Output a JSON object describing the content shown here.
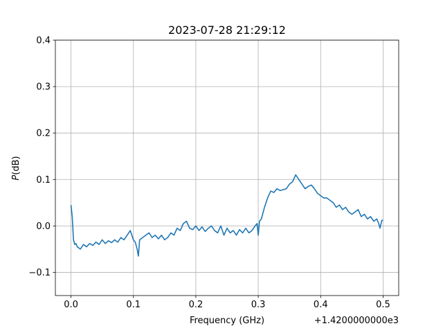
{
  "chart_data": {
    "type": "line",
    "title": "2023-07-28 21:29:12",
    "xlabel": "Frequency (GHz)",
    "ylabel_italic": "P",
    "ylabel_rest": "(dB)",
    "offset_text": "+1.4200000000e3",
    "xlim": [
      -0.025,
      0.525
    ],
    "ylim": [
      -0.15,
      0.4
    ],
    "xticks": [
      0.0,
      0.1,
      0.2,
      0.3,
      0.4,
      0.5
    ],
    "xtick_labels": [
      "0.0",
      "0.1",
      "0.2",
      "0.3",
      "0.4",
      "0.5"
    ],
    "yticks": [
      -0.1,
      0.0,
      0.1,
      0.2,
      0.3,
      0.4
    ],
    "ytick_labels": [
      "−0.1",
      "0.0",
      "0.1",
      "0.2",
      "0.3",
      "0.4"
    ],
    "grid": true,
    "line_color": "#1f77b4",
    "series": [
      {
        "x": [
          0.0,
          0.002,
          0.004,
          0.006,
          0.008,
          0.01,
          0.015,
          0.02,
          0.025,
          0.03,
          0.035,
          0.04,
          0.045,
          0.05,
          0.055,
          0.06,
          0.065,
          0.07,
          0.075,
          0.08,
          0.085,
          0.09,
          0.095,
          0.1,
          0.103,
          0.106,
          0.108,
          0.11,
          0.115,
          0.12,
          0.125,
          0.13,
          0.135,
          0.14,
          0.145,
          0.15,
          0.155,
          0.16,
          0.165,
          0.17,
          0.175,
          0.18,
          0.185,
          0.19,
          0.195,
          0.2,
          0.205,
          0.21,
          0.215,
          0.22,
          0.225,
          0.23,
          0.235,
          0.24,
          0.245,
          0.25,
          0.255,
          0.26,
          0.265,
          0.27,
          0.275,
          0.28,
          0.285,
          0.29,
          0.295,
          0.298,
          0.3,
          0.302,
          0.305,
          0.31,
          0.315,
          0.32,
          0.325,
          0.33,
          0.335,
          0.34,
          0.345,
          0.35,
          0.355,
          0.36,
          0.365,
          0.37,
          0.375,
          0.38,
          0.385,
          0.39,
          0.395,
          0.4,
          0.405,
          0.41,
          0.415,
          0.42,
          0.425,
          0.43,
          0.435,
          0.44,
          0.445,
          0.45,
          0.455,
          0.46,
          0.465,
          0.47,
          0.475,
          0.48,
          0.485,
          0.49,
          0.493,
          0.495,
          0.498,
          0.5
        ],
        "y": [
          0.045,
          0.02,
          -0.03,
          -0.04,
          -0.038,
          -0.045,
          -0.05,
          -0.04,
          -0.045,
          -0.038,
          -0.042,
          -0.035,
          -0.04,
          -0.03,
          -0.038,
          -0.032,
          -0.036,
          -0.03,
          -0.035,
          -0.025,
          -0.03,
          -0.02,
          -0.01,
          -0.03,
          -0.035,
          -0.05,
          -0.065,
          -0.03,
          -0.025,
          -0.02,
          -0.015,
          -0.025,
          -0.02,
          -0.028,
          -0.02,
          -0.03,
          -0.025,
          -0.015,
          -0.02,
          -0.005,
          -0.01,
          0.005,
          0.01,
          -0.005,
          -0.008,
          0.0,
          -0.01,
          -0.002,
          -0.012,
          -0.005,
          0.0,
          -0.01,
          -0.015,
          0.0,
          -0.02,
          -0.005,
          -0.015,
          -0.01,
          -0.02,
          -0.008,
          -0.015,
          -0.005,
          -0.015,
          -0.01,
          0.0,
          0.005,
          -0.02,
          0.01,
          0.015,
          0.04,
          0.06,
          0.075,
          0.072,
          0.08,
          0.076,
          0.078,
          0.08,
          0.09,
          0.095,
          0.11,
          0.1,
          0.09,
          0.08,
          0.085,
          0.088,
          0.08,
          0.07,
          0.065,
          0.06,
          0.06,
          0.055,
          0.05,
          0.04,
          0.045,
          0.035,
          0.04,
          0.03,
          0.025,
          0.03,
          0.035,
          0.02,
          0.025,
          0.015,
          0.02,
          0.01,
          0.015,
          0.005,
          -0.005,
          0.012,
          0.012
        ]
      }
    ]
  }
}
